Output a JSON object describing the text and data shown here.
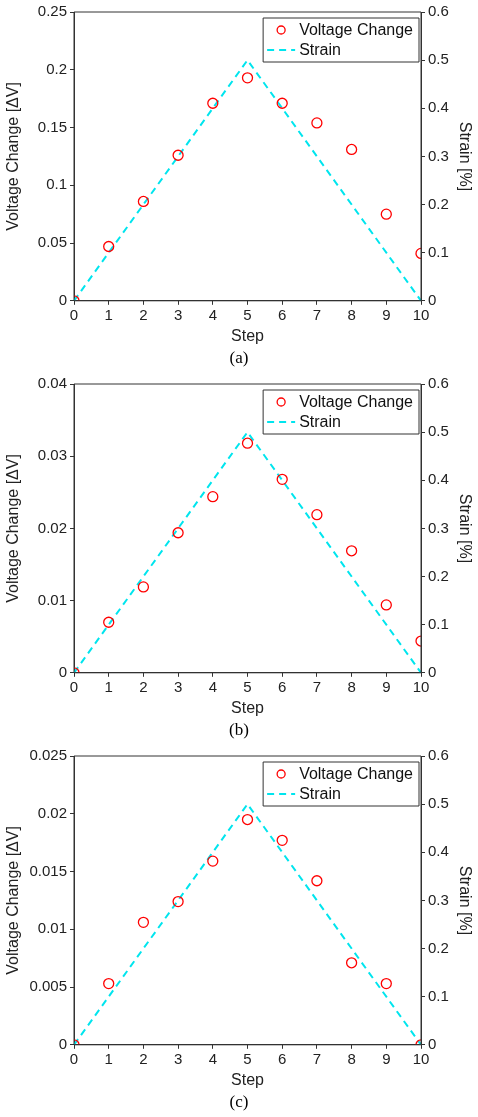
{
  "chart_data": [
    {
      "type": "scatter",
      "xlabel": "Step",
      "ylabel": "Voltage Change [ΔV]",
      "y2label": "Strain [%]",
      "annotations": [
        "(a)"
      ],
      "xlim": [
        0,
        10
      ],
      "xticks": [
        0,
        1,
        2,
        3,
        4,
        5,
        6,
        7,
        8,
        9,
        10
      ],
      "ylim": [
        0,
        0.25
      ],
      "yticks": [
        0,
        0.05,
        0.1,
        0.15,
        0.2,
        0.25
      ],
      "y2lim": [
        0,
        0.6
      ],
      "y2ticks": [
        0,
        0.1,
        0.2,
        0.3,
        0.4,
        0.5,
        0.6
      ],
      "grid": false,
      "legend": "top right",
      "series": [
        {
          "name": "Voltage Change",
          "type": "scatter",
          "marker": "circle",
          "color": "#ff0000",
          "x": [
            0,
            1,
            2,
            3,
            4,
            5,
            6,
            7,
            8,
            9,
            10
          ],
          "values": [
            0,
            0.047,
            0.086,
            0.126,
            0.171,
            0.193,
            0.171,
            0.154,
            0.131,
            0.075,
            0.041
          ]
        },
        {
          "name": "Strain",
          "type": "line",
          "line_style": "dashed",
          "axis": "y2",
          "color": "#00e5ee",
          "x": [
            0,
            5,
            10
          ],
          "values": [
            0,
            0.5,
            0
          ]
        }
      ]
    },
    {
      "type": "scatter",
      "xlabel": "Step",
      "ylabel": "Voltage Change [ΔV]",
      "y2label": "Strain [%]",
      "annotations": [
        "(b)"
      ],
      "xlim": [
        0,
        10
      ],
      "xticks": [
        0,
        1,
        2,
        3,
        4,
        5,
        6,
        7,
        8,
        9,
        10
      ],
      "ylim": [
        0,
        0.04
      ],
      "yticks": [
        0,
        0.01,
        0.02,
        0.03,
        0.04
      ],
      "y2lim": [
        0,
        0.6
      ],
      "y2ticks": [
        0,
        0.1,
        0.2,
        0.3,
        0.4,
        0.5,
        0.6
      ],
      "grid": false,
      "legend": "top right",
      "series": [
        {
          "name": "Voltage Change",
          "type": "scatter",
          "marker": "circle",
          "color": "#ff0000",
          "x": [
            0,
            1,
            2,
            3,
            4,
            5,
            6,
            7,
            8,
            9,
            10
          ],
          "values": [
            0,
            0.007,
            0.0119,
            0.0194,
            0.0244,
            0.0318,
            0.0268,
            0.0219,
            0.0169,
            0.0094,
            0.0044
          ]
        },
        {
          "name": "Strain",
          "type": "line",
          "line_style": "dashed",
          "axis": "y2",
          "color": "#00e5ee",
          "x": [
            0,
            5,
            10
          ],
          "values": [
            0,
            0.5,
            0
          ]
        }
      ]
    },
    {
      "type": "scatter",
      "xlabel": "Step",
      "ylabel": "Voltage Change [ΔV]",
      "y2label": "Strain [%]",
      "annotations": [
        "(c)"
      ],
      "xlim": [
        0,
        10
      ],
      "xticks": [
        0,
        1,
        2,
        3,
        4,
        5,
        6,
        7,
        8,
        9,
        10
      ],
      "ylim": [
        0,
        0.025
      ],
      "yticks": [
        0,
        0.005,
        0.01,
        0.015,
        0.02,
        0.025
      ],
      "y2lim": [
        0,
        0.6
      ],
      "y2ticks": [
        0,
        0.1,
        0.2,
        0.3,
        0.4,
        0.5,
        0.6
      ],
      "grid": false,
      "legend": "top right",
      "series": [
        {
          "name": "Voltage Change",
          "type": "scatter",
          "marker": "circle",
          "color": "#ff0000",
          "x": [
            0,
            1,
            2,
            3,
            4,
            5,
            6,
            7,
            8,
            9,
            10
          ],
          "values": [
            0,
            0.0053,
            0.0106,
            0.0124,
            0.0159,
            0.0195,
            0.0177,
            0.0142,
            0.0071,
            0.0053,
            0
          ]
        },
        {
          "name": "Strain",
          "type": "line",
          "line_style": "dashed",
          "axis": "y2",
          "color": "#00e5ee",
          "x": [
            0,
            5,
            10
          ],
          "values": [
            0,
            0.5,
            0
          ]
        }
      ]
    }
  ]
}
